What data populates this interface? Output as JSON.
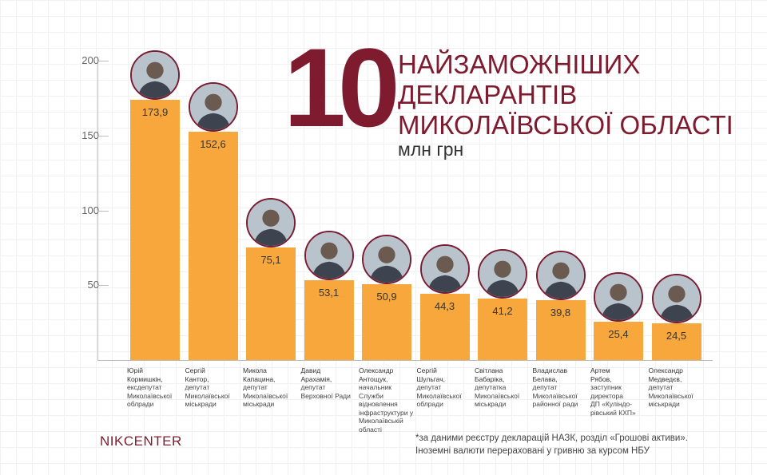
{
  "title_number": "10",
  "title_lines": [
    "НАЙЗАМОЖНІШИХ",
    "ДЕКЛАРАНТІВ",
    "МИКОЛАЇВСЬКОЇ ОБЛАСТІ"
  ],
  "unit": "млн грн",
  "logo": "NIKCENTER",
  "footnote": [
    "*за даними реєстру декларацій НАЗК, розділ «Грошові активи».",
    "Іноземні валюти перераховані у гривню за курсом НБУ"
  ],
  "colors": {
    "bar": "#f7a73b",
    "accent": "#7e1b2e"
  },
  "chart_data": {
    "type": "bar",
    "ylim": [
      0,
      200
    ],
    "yticks": [
      50,
      100,
      150,
      200
    ],
    "grid": false,
    "categories": [
      "Юрій Кормишкін",
      "Сергій Кантор",
      "Микола Капацина",
      "Давид Арахамія",
      "Олександр Антощук",
      "Сергій Шульгач",
      "Світлана Бабаріка",
      "Владислав Белава",
      "Артем Рябов",
      "Олександр Медведєв"
    ],
    "values": [
      173.9,
      152.6,
      75.1,
      53.1,
      50.9,
      44.3,
      41.2,
      39.8,
      25.4,
      24.5
    ],
    "data_labels": [
      "173,9",
      "152,6",
      "75,1",
      "53,1",
      "50,9",
      "44,3",
      "41,2",
      "39,8",
      "25,4",
      "24,5"
    ],
    "people": [
      {
        "name": [
          "Юрій",
          "Кормишкін,"
        ],
        "role": [
          "ексдепутат",
          "Миколаївської",
          "облради"
        ]
      },
      {
        "name": [
          "Сергій",
          "Кантор,"
        ],
        "role": [
          "депутат",
          "Миколаївської",
          "міськради"
        ]
      },
      {
        "name": [
          "Микола",
          "Капацина,"
        ],
        "role": [
          "депутат",
          "Миколаївської",
          "міськради"
        ]
      },
      {
        "name": [
          "Давид",
          "Арахамія,"
        ],
        "role": [
          "депутат",
          "Верховної Ради"
        ]
      },
      {
        "name": [
          "Олександр",
          "Антощук,"
        ],
        "role": [
          "начальник Служби",
          "відновлення",
          "інфраструктури у",
          "Миколаївській",
          "області"
        ]
      },
      {
        "name": [
          "Сергій",
          "Шульгач,"
        ],
        "role": [
          "депутат",
          "Миколаївської",
          "облради"
        ]
      },
      {
        "name": [
          "Світлана",
          "Бабаріка,"
        ],
        "role": [
          "депутатка",
          "Миколаївської",
          "міськради"
        ]
      },
      {
        "name": [
          "Владислав",
          "Белава,"
        ],
        "role": [
          "депутат",
          "Миколаївської",
          "районної ради"
        ]
      },
      {
        "name": [
          "Артем",
          "Рябов,"
        ],
        "role": [
          "заступник",
          "директора",
          "ДП «Куліндо-",
          "рівський КХП»"
        ]
      },
      {
        "name": [
          "Олександр",
          "Медведєв,"
        ],
        "role": [
          "депутат",
          "Миколаївської",
          "міськради"
        ]
      }
    ]
  }
}
